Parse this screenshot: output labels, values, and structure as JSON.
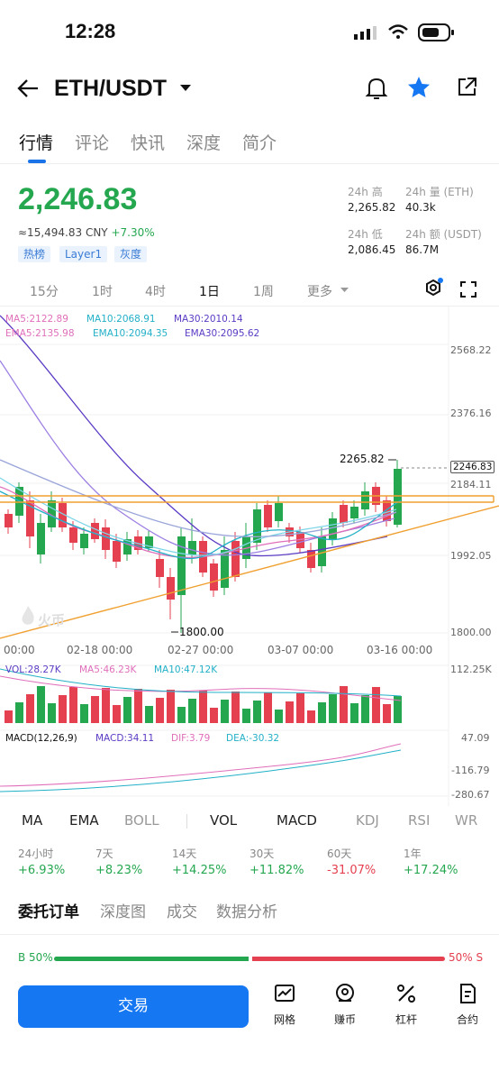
{
  "status": {
    "time": "12:28"
  },
  "header": {
    "pair": "ETH/USDT"
  },
  "tabs": [
    "行情",
    "评论",
    "快讯",
    "深度",
    "简介"
  ],
  "price": {
    "last": "2,246.83",
    "cny": "≈15,494.83 CNY",
    "change": "+7.30%",
    "tags": [
      "热榜",
      "Layer1",
      "灰度"
    ]
  },
  "stats": {
    "high_label": "24h 高",
    "high": "2,265.82",
    "vol_label": "24h 量 (ETH)",
    "vol": "40.3k",
    "low_label": "24h 低",
    "low": "2,086.45",
    "amt_label": "24h 额 (USDT)",
    "amt": "86.7M"
  },
  "intervals": [
    "15分",
    "1时",
    "4时",
    "1日",
    "1周",
    "更多"
  ],
  "indicators": {
    "ma5": "MA5:2122.89",
    "ma10": "MA10:2068.91",
    "ma30": "MA30:2010.14",
    "ema5": "EMA5:2135.98",
    "ema10": "EMA10:2094.35",
    "ema30": "EMA30:2095.62",
    "vol": "VOL:28.27K",
    "vma5": "MA5:46.23K",
    "vma10": "MA10:47.12K",
    "macd_title": "MACD(12,26,9)",
    "macd": "MACD:34.11",
    "dif": "DIF:3.79",
    "dea": "DEA:-30.32"
  },
  "axes": {
    "price_ticks": [
      "2568.22",
      "2376.16",
      "2184.11",
      "1992.05",
      "1800.00"
    ],
    "dates": [
      "00:00",
      "02-18 00:00",
      "02-27 00:00",
      "03-07 00:00",
      "03-16 00:00"
    ],
    "vol_max": "112.25K",
    "macd_ticks": [
      "47.09",
      "-116.79",
      "-280.67"
    ],
    "high_label": "2265.82",
    "low_label": "1800.00",
    "current": "2246.83",
    "watermark": "火币"
  },
  "chart_data": {
    "type": "candlestick",
    "high": 2265.82,
    "low": 1800.0,
    "last": 2246.83,
    "ylim": [
      1800.0,
      2568.22
    ],
    "x_labels": [
      "00:00",
      "02-18 00:00",
      "02-27 00:00",
      "03-07 00:00",
      "03-16 00:00"
    ]
  },
  "indicator_bar": [
    "MA",
    "EMA",
    "BOLL",
    "VOL",
    "MACD",
    "KDJ",
    "RSI",
    "WR"
  ],
  "returns": [
    {
      "label": "24小时",
      "value": "+6.93%"
    },
    {
      "label": "7天",
      "value": "+8.23%"
    },
    {
      "label": "14天",
      "value": "+14.25%"
    },
    {
      "label": "30天",
      "value": "+11.82%"
    },
    {
      "label": "60天",
      "value": "-31.07%"
    },
    {
      "label": "1年",
      "value": "+17.24%"
    }
  ],
  "orderbook_tabs": [
    "委托订单",
    "深度图",
    "成交",
    "数据分析"
  ],
  "ratio": {
    "buy": "B 50%",
    "sell": "50% S"
  },
  "bottom": {
    "trade": "交易",
    "grid": "网格",
    "earn": "赚币",
    "leverage": "杠杆",
    "contract": "合约"
  },
  "colors": {
    "up": "#25a750",
    "down": "#e5404f",
    "accent": "#1677f2"
  }
}
